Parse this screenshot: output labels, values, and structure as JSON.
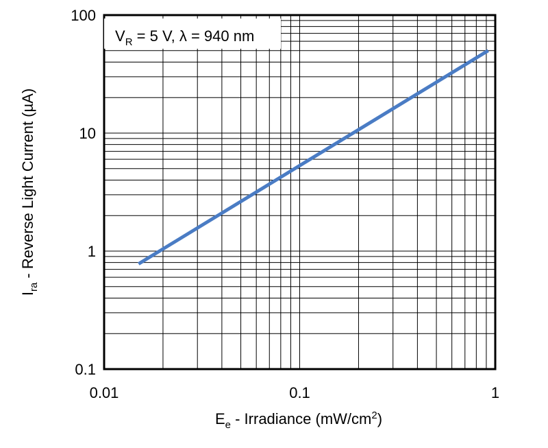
{
  "chart_data": {
    "type": "line",
    "x_scale": "log",
    "y_scale": "log",
    "xlim": [
      0.01,
      1
    ],
    "ylim": [
      0.1,
      100
    ],
    "grid": true,
    "x_ticks": [
      {
        "value": 0.01,
        "label": "0.01"
      },
      {
        "value": 0.1,
        "label": "0.1"
      },
      {
        "value": 1,
        "label": "1"
      }
    ],
    "y_ticks": [
      {
        "value": 0.1,
        "label": "0.1"
      },
      {
        "value": 1,
        "label": "1"
      },
      {
        "value": 10,
        "label": "10"
      },
      {
        "value": 100,
        "label": "100"
      }
    ],
    "xlabel": {
      "main": "E",
      "sub": "e",
      "rest": " - Irradiance (mW/cm",
      "sup": "2",
      "end": ")"
    },
    "ylabel": {
      "main": "I",
      "sub": "ra",
      "rest": " - Reverse Light Current (µA)"
    },
    "annotation": {
      "a": "V",
      "a_sub": "R",
      "b": " = 5 V, λ = 940 nm"
    },
    "series": [
      {
        "color": "#4a7cc4",
        "points": [
          [
            0.015,
            0.78
          ],
          [
            0.92,
            50
          ]
        ]
      }
    ]
  }
}
